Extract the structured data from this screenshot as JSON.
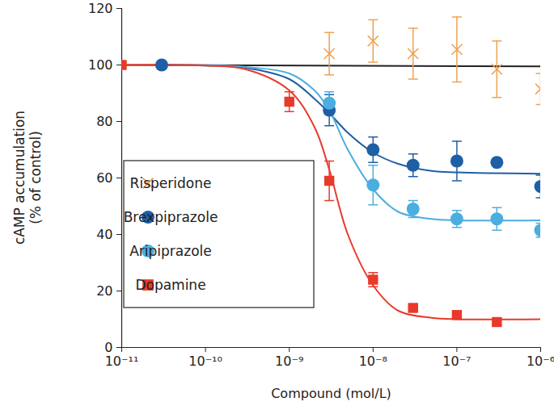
{
  "chart_data": {
    "type": "scatter",
    "x_label": "Compound (mol/L)",
    "y_label": "cAMP accumulation\n(% of control)",
    "log": "x",
    "legend": "left",
    "xlim": [
      1e-11,
      1e-06
    ],
    "xticks": [
      {
        "value": 1e-11,
        "label": "10⁻¹¹"
      },
      {
        "value": 1e-10,
        "label": "10⁻¹⁰"
      },
      {
        "value": 1e-09,
        "label": "10⁻⁹"
      },
      {
        "value": 1e-08,
        "label": "10⁻⁸"
      },
      {
        "value": 1e-07,
        "label": "10⁻⁷"
      },
      {
        "value": 1e-06,
        "label": "10⁻⁶"
      }
    ],
    "ylim": [
      0,
      120
    ],
    "yticks": [
      0,
      20,
      40,
      60,
      80,
      100,
      120
    ],
    "series": [
      {
        "name": "Risperidone",
        "color": "#f0a050",
        "marker": "x",
        "x": [
          3e-09,
          1e-08,
          3e-08,
          1e-07,
          3e-07,
          1e-06
        ],
        "values": [
          104,
          108.5,
          104,
          105.5,
          98.5,
          91.5
        ],
        "errors": [
          7.5,
          7.5,
          9,
          11.5,
          10,
          5.5
        ],
        "fit": {
          "color": "#222222",
          "x": [
            1e-11,
            1e-06
          ],
          "values": [
            100,
            99.5
          ]
        }
      },
      {
        "name": "Brexpiprazole",
        "color": "#1f5fa6",
        "marker": "circle",
        "x": [
          3e-11,
          3e-09,
          1e-08,
          3e-08,
          1e-07,
          3e-07,
          1e-06
        ],
        "values": [
          100,
          84,
          70,
          64.5,
          66,
          65.5,
          57
        ],
        "errors": [
          null,
          5.5,
          4.5,
          4,
          7,
          1,
          4
        ],
        "fit": {
          "color": "#1f5fa6",
          "x": [
            3e-11,
            1e-10,
            3e-10,
            1e-09,
            2e-09,
            3e-09,
            5e-09,
            1e-08,
            2e-08,
            5e-08,
            1e-07,
            1e-06
          ],
          "values": [
            100,
            99.8,
            99,
            95,
            88,
            83,
            76,
            69,
            65,
            62.5,
            62,
            61.5
          ]
        }
      },
      {
        "name": "Aripiprazole",
        "color": "#4aaee0",
        "marker": "circle",
        "x": [
          3e-09,
          1e-08,
          3e-08,
          1e-07,
          3e-07,
          1e-06
        ],
        "values": [
          86.5,
          57.5,
          49,
          45.5,
          45.5,
          41.5
        ],
        "errors": [
          4,
          7,
          3,
          3,
          4,
          2.5
        ],
        "fit": {
          "color": "#4aaee0",
          "x": [
            3e-11,
            1e-10,
            3e-10,
            1e-09,
            2e-09,
            3e-09,
            5e-09,
            1e-08,
            2e-08,
            5e-08,
            1e-07,
            1e-06
          ],
          "values": [
            100,
            99.9,
            99.3,
            97,
            91,
            84,
            70,
            56,
            48,
            45.5,
            45,
            45
          ]
        }
      },
      {
        "name": "Dopamine",
        "color": "#e8392a",
        "marker": "square",
        "x": [
          1e-11,
          1e-09,
          3e-09,
          1e-08,
          3e-08,
          1e-07,
          3e-07
        ],
        "values": [
          100,
          87,
          59,
          24,
          14,
          11.5,
          9
        ],
        "errors": [
          null,
          3.5,
          7,
          2.5,
          1,
          1,
          1
        ],
        "fit": {
          "color": "#e8392a",
          "x": [
            1e-11,
            1e-10,
            3e-10,
            1e-09,
            2e-09,
            3e-09,
            5e-09,
            1e-08,
            2e-08,
            5e-08,
            1e-07,
            1e-06
          ],
          "values": [
            100,
            99.8,
            98.5,
            91,
            78,
            63,
            40,
            22,
            13,
            10.5,
            10,
            10
          ]
        }
      }
    ]
  }
}
